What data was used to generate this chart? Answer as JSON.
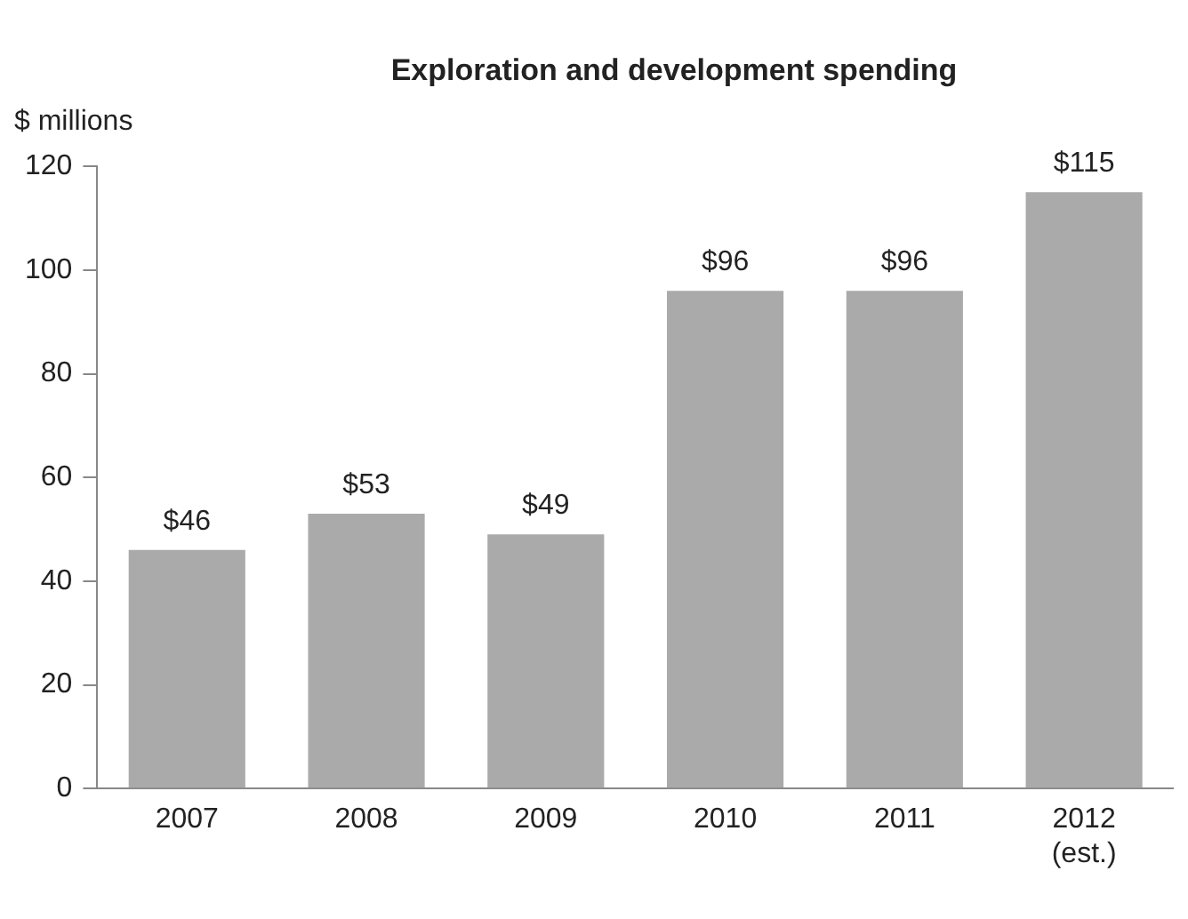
{
  "chart_data": {
    "type": "bar",
    "title": "Exploration and development spending",
    "ylabel": "$ millions",
    "categories": [
      "2007",
      "2008",
      "2009",
      "2010",
      "2011",
      "2012\n(est.)"
    ],
    "values": [
      46,
      53,
      49,
      96,
      96,
      115
    ],
    "value_labels": [
      "$46",
      "$53",
      "$49",
      "$96",
      "$96",
      "$115"
    ],
    "color": "#aaaaaa",
    "ylim": [
      0,
      120
    ],
    "yticks": [
      0,
      20,
      40,
      60,
      80,
      100,
      120
    ],
    "grid": false,
    "legend": false
  }
}
